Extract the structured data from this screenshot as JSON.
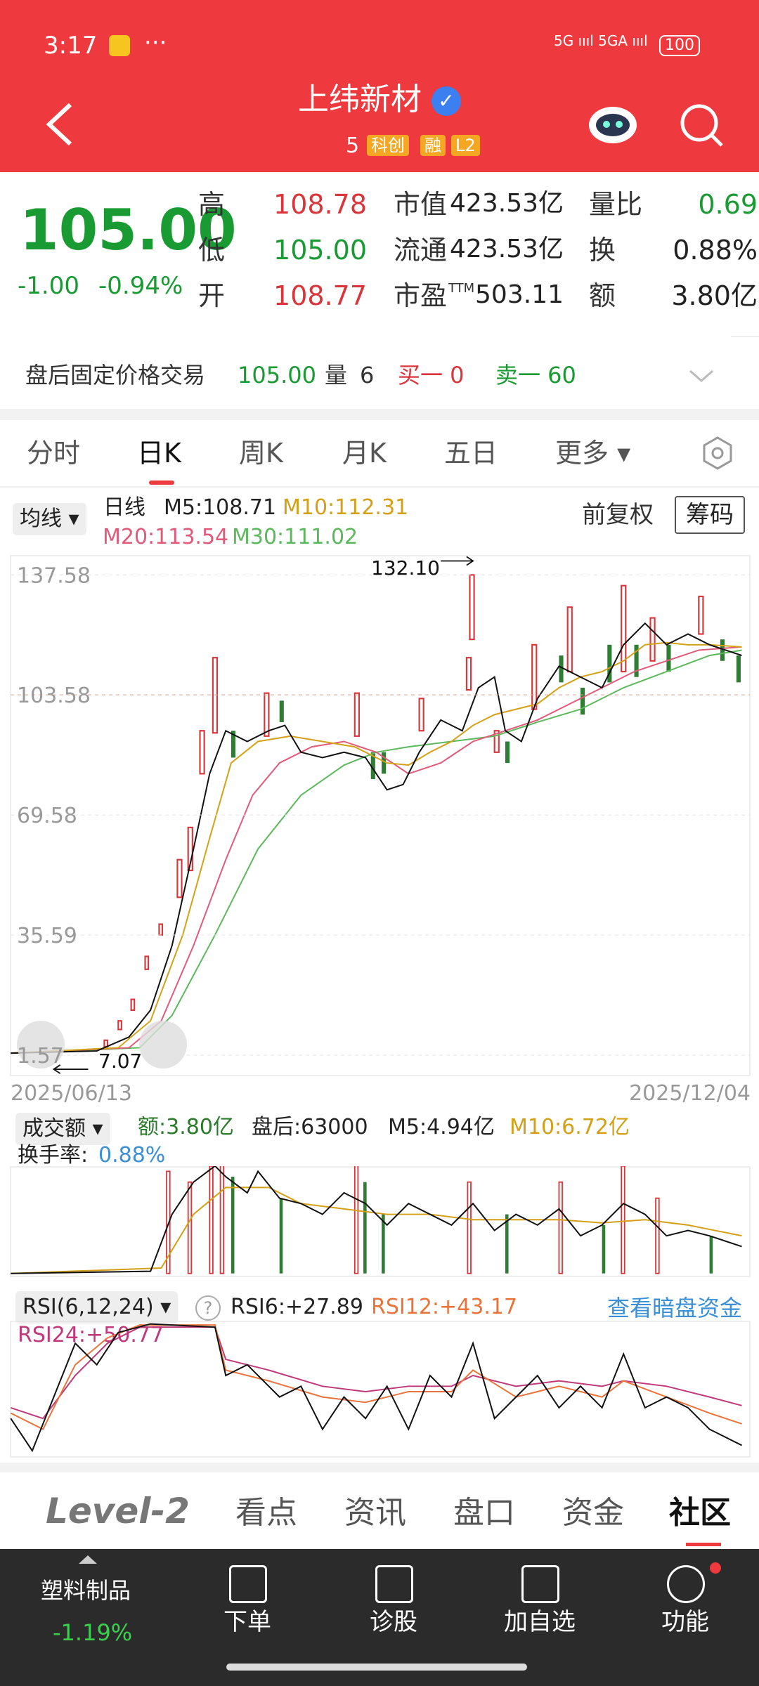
{
  "status_bar": {
    "time": "3:17",
    "battery": "100"
  },
  "header": {
    "title": "上纬新材",
    "code": "5",
    "badges": [
      "科创",
      "融",
      "L2"
    ]
  },
  "quote": {
    "price": "105.00",
    "change": "-1.00",
    "change_pct": "-0.94%",
    "col1": [
      {
        "label": "高",
        "value": "108.78"
      },
      {
        "label": "低",
        "value": "105.00"
      },
      {
        "label": "开",
        "value": "108.77"
      }
    ],
    "col2": [
      {
        "label": "市值",
        "value": "423.53亿"
      },
      {
        "label": "流通",
        "value": "423.53亿"
      },
      {
        "label": "市盈",
        "sup": "TTM",
        "value": "503.11"
      }
    ],
    "col3": [
      {
        "label": "量比",
        "value": "0.69"
      },
      {
        "label": "换",
        "value": "0.88%"
      },
      {
        "label": "额",
        "value": "3.80亿"
      }
    ]
  },
  "after_hours": {
    "label": "盘后固定价格交易",
    "price": "105.00",
    "volume_label": "量",
    "volume": "6",
    "buy": "买一 0",
    "sell": "卖一 60"
  },
  "tabs": [
    "分时",
    "日K",
    "周K",
    "月K",
    "五日",
    "更多"
  ],
  "kline": {
    "indicator": "均线",
    "period": "日线",
    "ma": [
      "M5:108.71",
      "M10:112.31",
      "M20:113.54",
      "M30:111.02"
    ],
    "adjust": "前复权",
    "chips": "筹码",
    "ylim": [
      -4.4,
      143.2
    ],
    "yticks": [
      137.58,
      103.58,
      69.58,
      35.59,
      1.57
    ],
    "high_label": "132.10",
    "low_label": "7.07",
    "start_date": "2025/06/13",
    "end_date": "2025/12/04"
  },
  "volume": {
    "selector": "成交额",
    "items": [
      "额:3.80亿",
      "盘后:63000",
      "M5:4.94亿",
      "M10:6.72亿"
    ],
    "turnover_label": "换手率:",
    "turnover": "0.88%"
  },
  "rsi": {
    "selector": "RSI(6,12,24)",
    "items": [
      "RSI6:+27.89",
      "RSI12:+43.17",
      "RSI24:+50.77"
    ],
    "link": "查看暗盘资金"
  },
  "bottom_tabs": [
    "Level-2",
    "看点",
    "资讯",
    "盘口",
    "资金",
    "社区"
  ],
  "toolbar": {
    "sector": "塑料制品",
    "sector_change": "-1.19%",
    "buttons": [
      "下单",
      "诊股",
      "加自选",
      "功能"
    ]
  }
}
